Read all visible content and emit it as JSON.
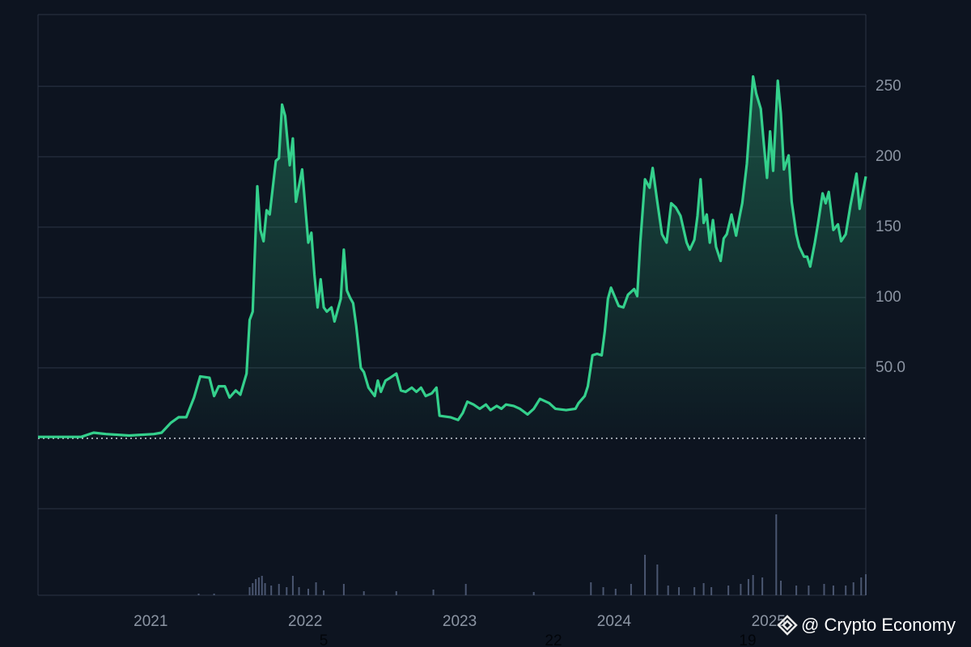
{
  "chart_data": [
    {
      "type": "line",
      "color": "#34d08c",
      "x": [
        2020.27,
        2020.55,
        2020.63,
        2020.71,
        2020.86,
        2021.02,
        2021.07,
        2021.13,
        2021.18,
        2021.23,
        2021.28,
        2021.32,
        2021.38,
        2021.41,
        2021.44,
        2021.48,
        2021.51,
        2021.55,
        2021.58,
        2021.62,
        2021.64,
        2021.66,
        2021.69,
        2021.71,
        2021.73,
        2021.75,
        2021.77,
        2021.81,
        2021.83,
        2021.85,
        2021.87,
        2021.9,
        2021.92,
        2021.94,
        2021.98,
        2022.02,
        2022.04,
        2022.06,
        2022.08,
        2022.1,
        2022.12,
        2022.14,
        2022.17,
        2022.19,
        2022.23,
        2022.25,
        2022.27,
        2022.29,
        2022.31,
        2022.33,
        2022.36,
        2022.38,
        2022.41,
        2022.45,
        2022.47,
        2022.49,
        2022.52,
        2022.55,
        2022.59,
        2022.62,
        2022.65,
        2022.69,
        2022.72,
        2022.75,
        2022.78,
        2022.82,
        2022.85,
        2022.87,
        2022.94,
        2022.99,
        2023.02,
        2023.05,
        2023.09,
        2023.13,
        2023.17,
        2023.2,
        2023.24,
        2023.27,
        2023.3,
        2023.35,
        2023.39,
        2023.44,
        2023.48,
        2023.52,
        2023.58,
        2023.62,
        2023.69,
        2023.75,
        2023.77,
        2023.81,
        2023.83,
        2023.86,
        2023.89,
        2023.92,
        2023.94,
        2023.96,
        2023.98,
        2024.03,
        2024.06,
        2024.09,
        2024.13,
        2024.15,
        2024.17,
        2024.2,
        2024.23,
        2024.25,
        2024.28,
        2024.31,
        2024.34,
        2024.37,
        2024.4,
        2024.43,
        2024.47,
        2024.49,
        2024.52,
        2024.54,
        2024.56,
        2024.58,
        2024.6,
        2024.62,
        2024.64,
        2024.66,
        2024.69,
        2024.71,
        2024.73,
        2024.76,
        2024.79,
        2024.81,
        2024.83,
        2024.86,
        2024.9,
        2024.92,
        2024.95,
        2024.97,
        2024.99,
        2025.01,
        2025.03,
        2025.06,
        2025.08,
        2025.1,
        2025.13,
        2025.15,
        2025.18,
        2025.2,
        2025.23,
        2025.25,
        2025.27,
        2025.3,
        2025.32,
        2025.35,
        2025.37,
        2025.39,
        2025.42,
        2025.45,
        2025.47,
        2025.5,
        2025.53,
        2025.57,
        2025.59,
        2025.63
      ],
      "values": [
        1,
        1,
        4,
        3,
        2,
        3,
        4,
        11,
        15,
        15,
        29,
        44,
        43,
        30,
        37,
        37,
        29,
        34,
        31,
        46,
        84,
        90,
        179,
        148,
        140,
        162,
        159,
        197,
        199,
        237,
        229,
        194,
        213,
        168,
        191,
        139,
        146,
        116,
        93,
        113,
        93,
        90,
        93,
        83,
        99,
        134,
        105,
        100,
        96,
        80,
        50,
        47,
        36,
        30,
        41,
        33,
        41,
        43,
        46,
        34,
        33,
        36,
        33,
        36,
        30,
        32,
        36,
        16,
        15,
        13,
        18,
        26,
        24,
        21,
        24,
        20,
        23,
        21,
        24,
        23,
        21,
        17,
        21,
        28,
        25,
        21,
        20,
        21,
        25,
        30,
        37,
        59,
        60,
        59,
        76,
        99,
        107,
        94,
        93,
        102,
        106,
        101,
        139,
        184,
        178,
        192,
        168,
        145,
        139,
        167,
        164,
        158,
        139,
        134,
        141,
        158,
        184,
        153,
        159,
        139,
        155,
        136,
        126,
        142,
        145,
        159,
        144,
        156,
        167,
        195,
        257,
        245,
        234,
        209,
        185,
        218,
        190,
        254,
        231,
        191,
        201,
        168,
        145,
        136,
        129,
        129,
        122,
        139,
        152,
        174,
        167,
        175,
        148,
        152,
        140,
        145,
        165,
        188,
        163,
        186
      ],
      "xlim": [
        2020.27,
        2025.63
      ],
      "xticks": [
        2021,
        2022,
        2023,
        2024,
        2025
      ],
      "ylim": [
        -50,
        301
      ],
      "yticks": [
        {
          "value": 50,
          "label": "50.0"
        },
        100,
        150,
        200,
        250
      ],
      "grid": true
    },
    {
      "type": "bar",
      "color": "#4a5670",
      "x": [
        2021.31,
        2021.41,
        2021.64,
        2021.66,
        2021.68,
        2021.7,
        2021.72,
        2021.74,
        2021.78,
        2021.83,
        2021.88,
        2021.92,
        2021.96,
        2022.02,
        2022.07,
        2022.12,
        2022.25,
        2022.38,
        2022.59,
        2022.83,
        2023.04,
        2023.48,
        2023.85,
        2023.93,
        2024.01,
        2024.11,
        2024.2,
        2024.28,
        2024.35,
        2024.42,
        2024.52,
        2024.58,
        2024.63,
        2024.74,
        2024.82,
        2024.87,
        2024.9,
        2024.96,
        2025.05,
        2025.08,
        2025.18,
        2025.26,
        2025.36,
        2025.42,
        2025.5,
        2025.55,
        2025.6,
        2025.63
      ],
      "values": [
        2,
        2,
        10,
        15,
        20,
        22,
        24,
        15,
        12,
        14,
        10,
        24,
        10,
        8,
        16,
        6,
        14,
        5,
        5,
        7,
        14,
        4,
        16,
        10,
        8,
        14,
        50,
        38,
        12,
        10,
        10,
        15,
        10,
        12,
        14,
        20,
        25,
        22,
        100,
        18,
        12,
        12,
        14,
        12,
        12,
        16,
        22,
        26
      ],
      "ylim": [
        0,
        107
      ]
    }
  ],
  "annotations": [
    "5",
    "22",
    "19"
  ],
  "watermark": "@ Crypto Economy"
}
